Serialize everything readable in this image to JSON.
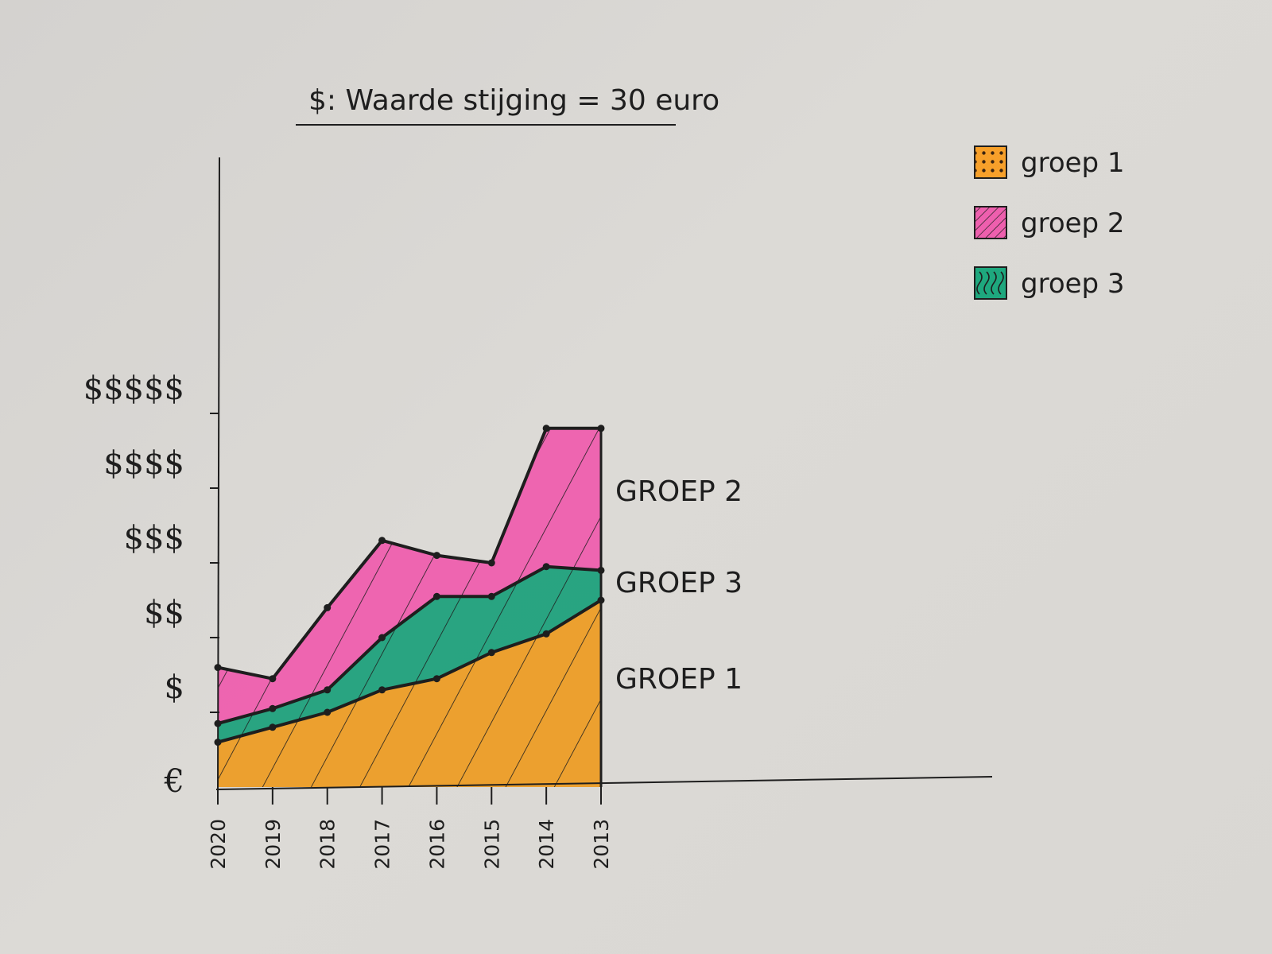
{
  "chart_data": {
    "type": "area",
    "title": "$: Waarde stijging = 30 euro",
    "xlabel": "",
    "ylabel": "",
    "x": [
      "2020",
      "2019",
      "2018",
      "2017",
      "2016",
      "2015",
      "2014",
      "2013"
    ],
    "y_ticks": [
      "€",
      "$",
      "$$",
      "$$$",
      "$$$$",
      "$$$$$"
    ],
    "ylim": [
      0,
      5
    ],
    "stacked": false,
    "series": [
      {
        "name": "GROEP 1",
        "legend": "groep 1",
        "color": "#f7a02a",
        "values": [
          0.6,
          0.8,
          1.0,
          1.3,
          1.45,
          1.8,
          2.05,
          2.5
        ]
      },
      {
        "name": "GROEP 3",
        "legend": "groep 3",
        "color": "#1ea87e",
        "values": [
          0.85,
          1.05,
          1.3,
          2.0,
          2.55,
          2.55,
          2.95,
          2.9
        ]
      },
      {
        "name": "GROEP 2",
        "legend": "groep 2",
        "color": "#ee5fae",
        "values": [
          1.6,
          1.45,
          2.4,
          3.3,
          3.1,
          3.0,
          4.8,
          4.8
        ]
      }
    ],
    "legend_position": "top-right",
    "grid": false
  }
}
